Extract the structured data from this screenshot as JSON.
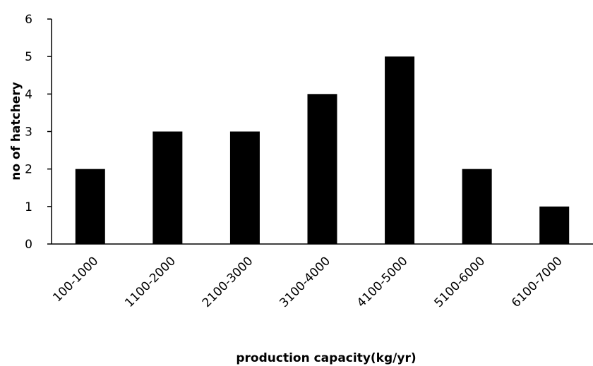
{
  "chart_data": {
    "type": "bar",
    "categories": [
      "100-1000",
      "1100-2000",
      "2100-3000",
      "3100-4000",
      "4100-5000",
      "5100-6000",
      "6100-7000"
    ],
    "series": [
      {
        "values": [
          2,
          3,
          3,
          4,
          5,
          2,
          1
        ]
      }
    ],
    "title": "",
    "xlabel": "production capacity(kg/yr)",
    "ylabel": "no of hatchery",
    "ylim": [
      0,
      6
    ],
    "yticks": [
      0,
      1,
      2,
      3,
      4,
      5,
      6
    ],
    "grid": false,
    "legend": "none",
    "bar_color": "#000000"
  }
}
